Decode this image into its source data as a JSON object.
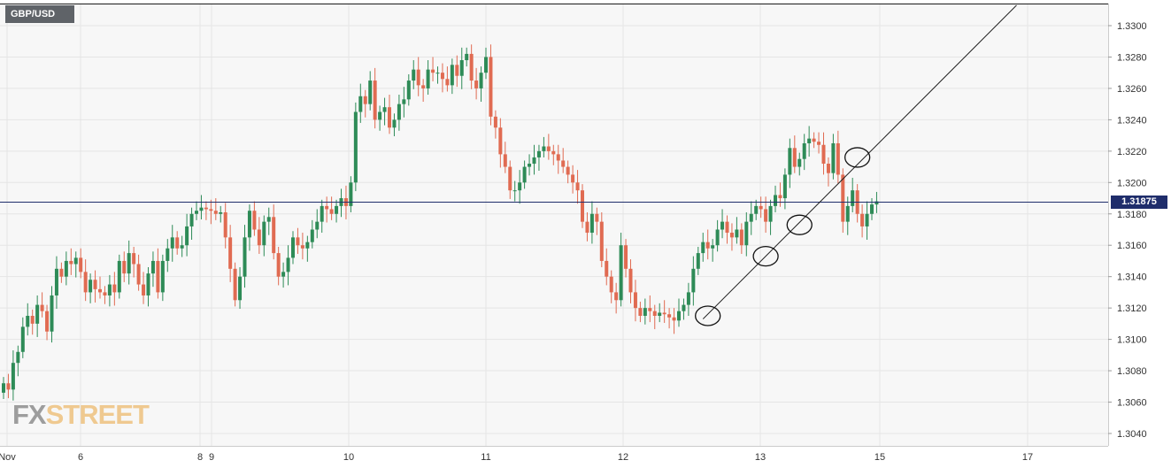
{
  "symbol": "GBP/USD",
  "logo": {
    "fx": "FX",
    "street": "STREET"
  },
  "colors": {
    "bullish": "#2e8b57",
    "bearish": "#e06b52",
    "trendline": "#1a1a1a",
    "current_price_line": "#1f2d6b",
    "grid": "#e5e5e5",
    "plot_bg": "#f7f7f7"
  },
  "chart_data": {
    "type": "candlestick",
    "title": "GBP/USD",
    "current_price": "1.31875",
    "ylim": [
      1.303,
      1.3315
    ],
    "y_ticks": [
      "1.3300",
      "1.3280",
      "1.3260",
      "1.3240",
      "1.3220",
      "1.3200",
      "1.3180",
      "1.3160",
      "1.3140",
      "1.3120",
      "1.3100",
      "1.3080",
      "1.3060",
      "1.3040"
    ],
    "x_ticks": [
      "Nov",
      "6",
      "8",
      "9",
      "10",
      "11",
      "12",
      "13",
      "15",
      "17"
    ],
    "trendline": {
      "from": {
        "bar": 145,
        "price": 1.3113
      },
      "to": {
        "bar": 210,
        "price": 1.3313
      }
    },
    "highlights": [
      {
        "bar": 146,
        "price": 1.3115
      },
      {
        "bar": 158,
        "price": 1.3153
      },
      {
        "bar": 165,
        "price": 1.3173
      },
      {
        "bar": 177,
        "price": 1.3216
      }
    ],
    "candles_note": "OHLC per bar, approx. 5.7 bars per day span",
    "candles": []
  }
}
